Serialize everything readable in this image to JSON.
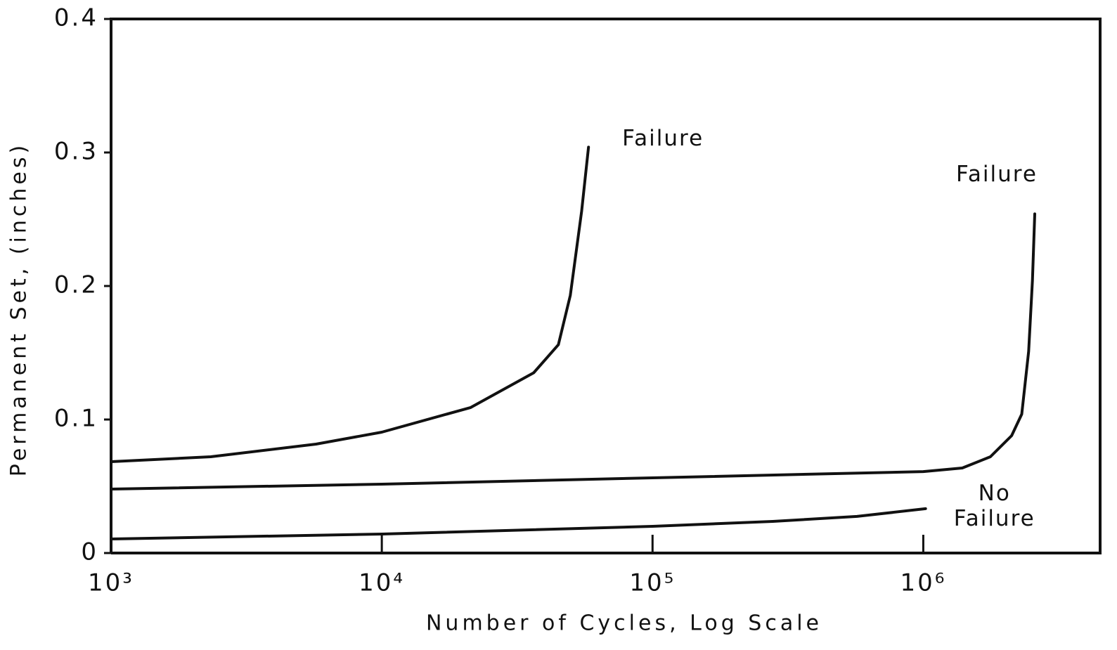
{
  "chart_data": {
    "type": "line",
    "xlabel": "Number of Cycles, Log Scale",
    "ylabel": "Permanent Set, (inches)",
    "xscale": "log",
    "xlim": [
      1000,
      4500000
    ],
    "ylim": [
      0,
      0.4
    ],
    "xticks": [
      {
        "value": 1000,
        "label": "10³"
      },
      {
        "value": 10000,
        "label": "10⁴"
      },
      {
        "value": 100000,
        "label": "10⁵"
      },
      {
        "value": 1000000,
        "label": "10⁶"
      }
    ],
    "yticks": [
      0,
      0.1,
      0.2,
      0.3,
      0.4
    ],
    "series": [
      {
        "color": "#111111",
        "x": [
          1000,
          2335,
          5718,
          10000,
          21300,
          36400,
          44900,
          49700,
          54700,
          58000
        ],
        "values": [
          0.0684,
          0.0721,
          0.0816,
          0.0905,
          0.109,
          0.135,
          0.156,
          0.193,
          0.256,
          0.304
        ]
      },
      {
        "color": "#111111",
        "x": [
          1000,
          10000,
          100000,
          1000000,
          1393000,
          1770000,
          2120000,
          2310000,
          2450000,
          2530000,
          2580000
        ],
        "values": [
          0.0479,
          0.0516,
          0.0563,
          0.061,
          0.0637,
          0.0721,
          0.0879,
          0.104,
          0.151,
          0.204,
          0.254
        ]
      },
      {
        "color": "#111111",
        "x": [
          1000,
          10000,
          100000,
          278000,
          569000,
          1020000
        ],
        "values": [
          0.0105,
          0.0142,
          0.02,
          0.0237,
          0.0274,
          0.0332
        ]
      }
    ],
    "annotations": [
      "Failure",
      "Failure",
      "No Failure"
    ]
  }
}
